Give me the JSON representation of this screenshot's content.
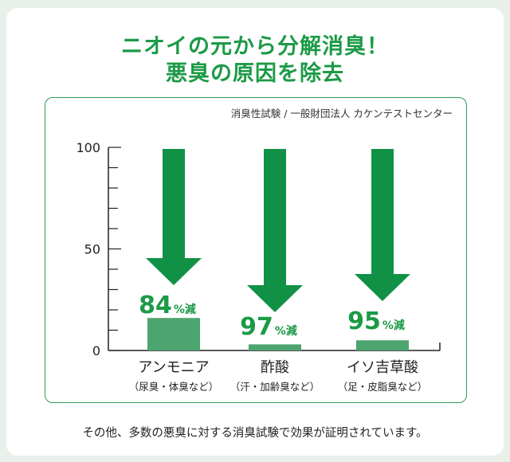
{
  "headline": {
    "line1": "ニオイの元から分解消臭！",
    "line2": "悪臭の原因を除去"
  },
  "source_note": "消臭性試験 / 一般財団法人 カケンテストセンター",
  "footer_note": "その他、多数の悪臭に対する消臭試験で効果が証明されています。",
  "colors": {
    "brand_green": "#1c9a46",
    "arrow_green": "#119146",
    "bar_green": "#4ca56e",
    "card_bg": "#e9efe9"
  },
  "chart_data": {
    "type": "bar",
    "categories": [
      "アンモニア",
      "酢酸",
      "イソ吉草酸"
    ],
    "category_notes": [
      "（尿臭・体臭など）",
      "（汗・加齢臭など）",
      "（足・皮脂臭など）"
    ],
    "values": [
      16,
      3,
      5
    ],
    "reduction_labels": [
      {
        "value": "84",
        "unit": "%減"
      },
      {
        "value": "97",
        "unit": "%減"
      },
      {
        "value": "95",
        "unit": "%減"
      }
    ],
    "ylim": [
      0,
      100
    ],
    "y_ticks": [
      0,
      50,
      100
    ],
    "minor_tick_step": 10,
    "grid": false,
    "xlabel": "",
    "ylabel": ""
  }
}
